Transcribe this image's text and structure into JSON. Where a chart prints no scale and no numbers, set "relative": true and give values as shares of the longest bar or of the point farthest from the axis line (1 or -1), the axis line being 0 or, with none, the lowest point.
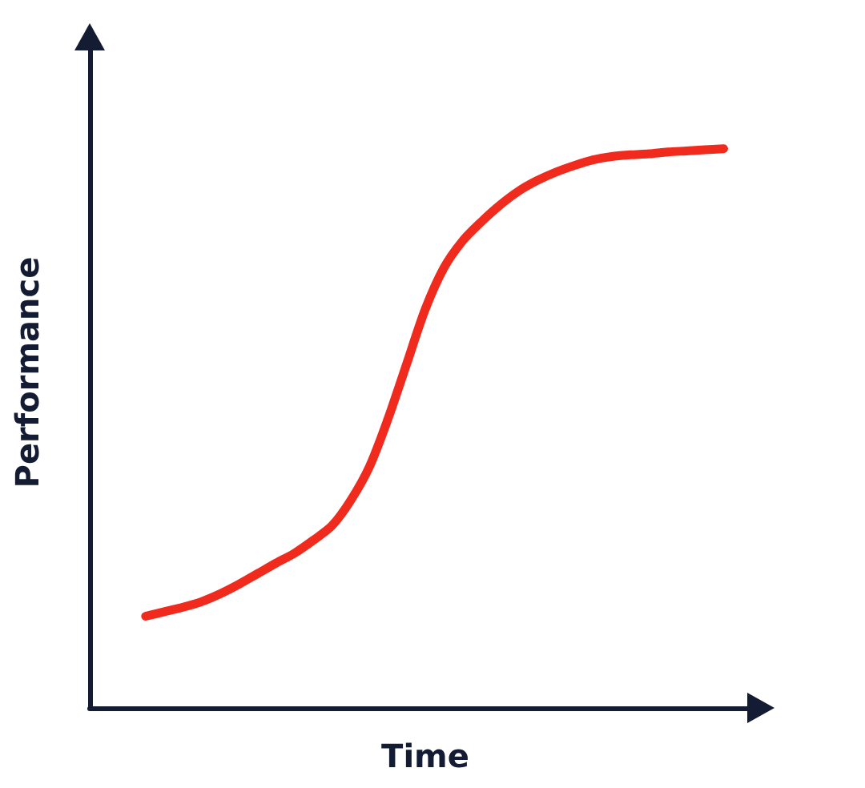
{
  "chart_data": {
    "type": "line",
    "relative": true,
    "xlabel": "Time",
    "ylabel": "Performance",
    "categories": [
      null,
      null,
      null,
      null,
      null,
      null,
      null,
      null,
      null,
      null,
      null,
      null,
      null,
      null,
      null,
      null,
      null,
      null,
      null,
      null,
      null,
      null,
      null,
      null,
      null,
      null,
      null,
      null,
      null,
      null,
      null,
      null,
      null,
      null,
      null,
      null,
      null
    ],
    "series": [
      {
        "color": "#f02a1c",
        "values": [
          null,
          null,
          null,
          0.164,
          0.172,
          0.18,
          0.19,
          0.204,
          0.221,
          0.24,
          0.259,
          0.277,
          0.3,
          0.326,
          0.371,
          0.431,
          0.517,
          0.615,
          0.713,
          0.787,
          0.835,
          0.869,
          0.899,
          0.924,
          0.943,
          0.958,
          0.97,
          0.98,
          0.986,
          0.989,
          0.991,
          0.994,
          0.996,
          0.998,
          1,
          null,
          null
        ]
      }
    ]
  }
}
